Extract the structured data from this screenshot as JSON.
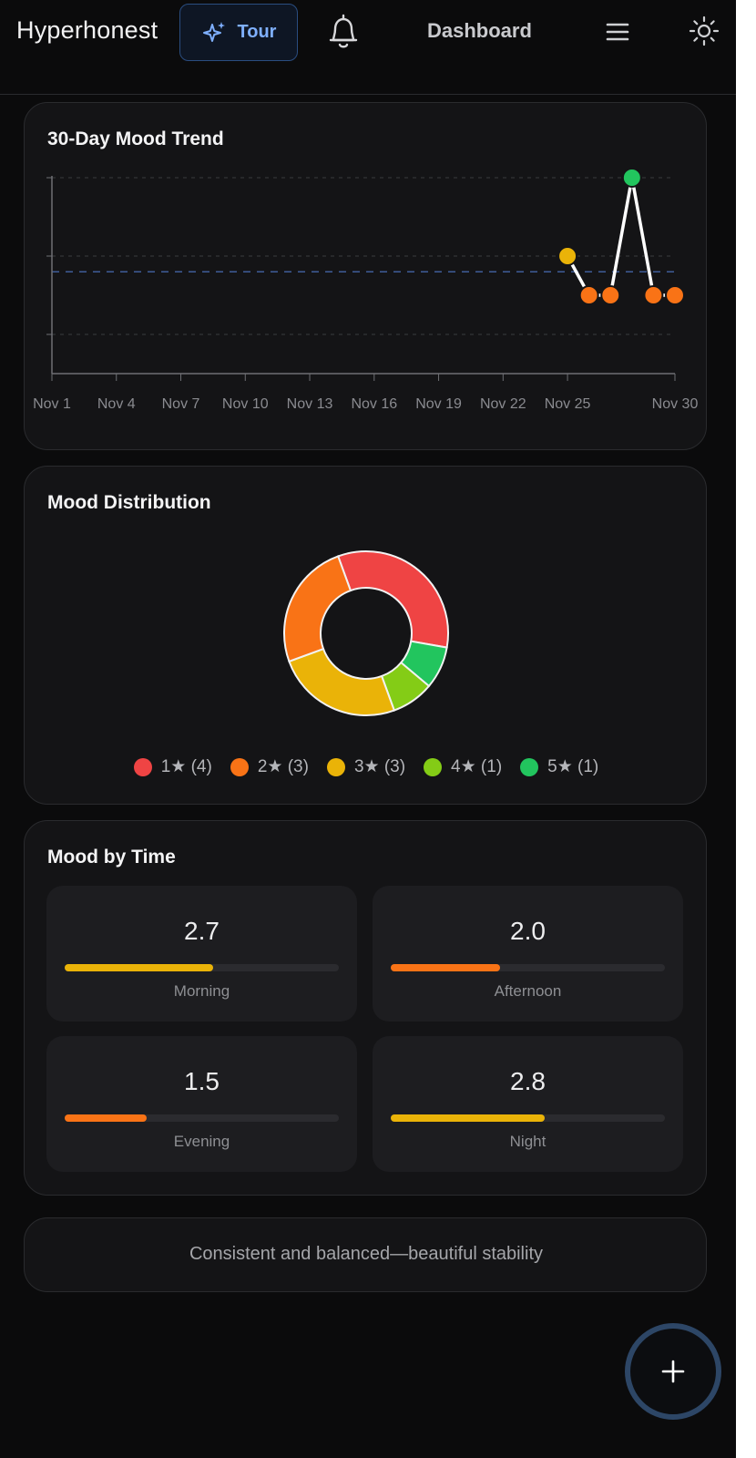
{
  "header": {
    "brand": "Hyperhonest",
    "tour_label": "Tour",
    "dashboard_label": "Dashboard"
  },
  "trend": {
    "title": "30-Day Mood Trend"
  },
  "distribution": {
    "title": "Mood Distribution",
    "legend": [
      {
        "label": "1★ (4)",
        "color": "#ef4444"
      },
      {
        "label": "2★ (3)",
        "color": "#f97316"
      },
      {
        "label": "3★ (3)",
        "color": "#eab308"
      },
      {
        "label": "4★ (1)",
        "color": "#84cc16"
      },
      {
        "label": "5★ (1)",
        "color": "#22c55e"
      }
    ]
  },
  "time": {
    "title": "Mood by Time",
    "tiles": [
      {
        "value": "2.7",
        "label": "Morning",
        "fill": 0.54,
        "color": "#eab308"
      },
      {
        "value": "2.0",
        "label": "Afternoon",
        "fill": 0.4,
        "color": "#f97316"
      },
      {
        "value": "1.5",
        "label": "Evening",
        "fill": 0.3,
        "color": "#f97316"
      },
      {
        "value": "2.8",
        "label": "Night",
        "fill": 0.56,
        "color": "#eab308"
      }
    ]
  },
  "quote": {
    "text": "Consistent and balanced—beautiful stability"
  },
  "chart_data": [
    {
      "type": "line",
      "title": "30-Day Mood Trend",
      "x_ticks": [
        "Nov 1",
        "Nov 4",
        "Nov 7",
        "Nov 10",
        "Nov 13",
        "Nov 16",
        "Nov 19",
        "Nov 22",
        "Nov 25",
        "Nov 30"
      ],
      "ylim": [
        0,
        5
      ],
      "grid": true,
      "average_line": 2.6,
      "x": [
        "Nov 25",
        "Nov 26",
        "Nov 27",
        "Nov 28",
        "Nov 29",
        "Nov 30"
      ],
      "values": [
        3,
        2,
        2,
        5,
        2,
        2
      ],
      "point_colors": [
        "#eab308",
        "#f97316",
        "#f97316",
        "#22c55e",
        "#f97316",
        "#f97316"
      ]
    },
    {
      "type": "pie",
      "title": "Mood Distribution",
      "categories": [
        "1★",
        "2★",
        "3★",
        "4★",
        "5★"
      ],
      "values": [
        4,
        3,
        3,
        1,
        1
      ],
      "colors": [
        "#ef4444",
        "#f97316",
        "#eab308",
        "#84cc16",
        "#22c55e"
      ]
    }
  ]
}
